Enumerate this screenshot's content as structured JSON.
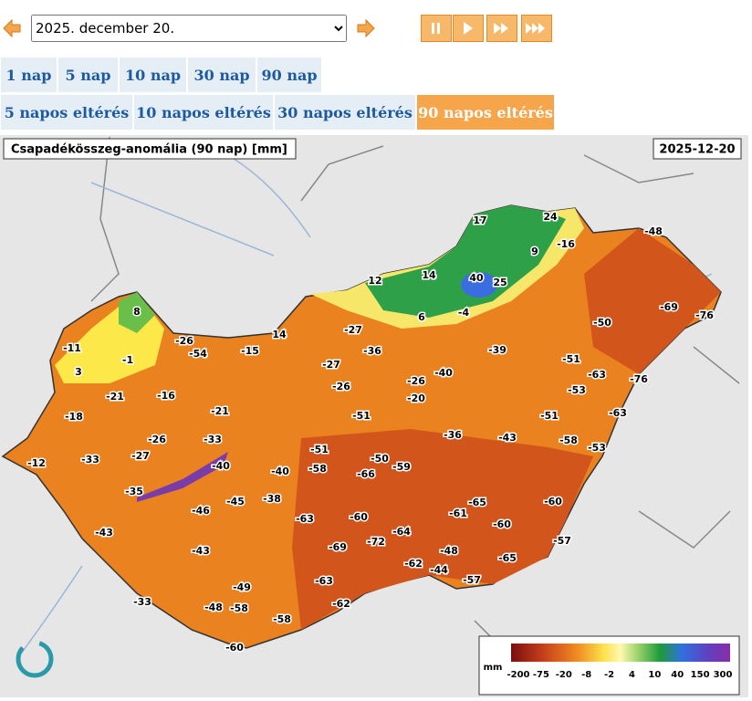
{
  "controls": {
    "date_select": "2025. december 20."
  },
  "tabs": {
    "row1": [
      {
        "label": "1 nap",
        "active": false
      },
      {
        "label": "5 nap",
        "active": false
      },
      {
        "label": "10 nap",
        "active": false
      },
      {
        "label": "30 nap",
        "active": false
      },
      {
        "label": "90 nap",
        "active": false
      }
    ],
    "row2": [
      {
        "label": "5 napos eltérés",
        "active": false
      },
      {
        "label": "10 napos eltérés",
        "active": false
      },
      {
        "label": "30 napos eltérés",
        "active": false
      },
      {
        "label": "90 napos eltérés",
        "active": true
      }
    ]
  },
  "map": {
    "title": "Csapadékösszeg-anomália (90 nap) [mm]",
    "date": "2025-12-20",
    "labels": [
      17,
      24,
      -48,
      -16,
      9,
      12,
      14,
      40,
      25,
      -69,
      -76,
      6,
      -4,
      8,
      -50,
      -27,
      14,
      -26,
      -11,
      -36,
      -15,
      -54,
      -39,
      -1,
      -51,
      -27,
      3,
      -40,
      -63,
      -76,
      -26,
      -26,
      -53,
      -21,
      -16,
      -20,
      -21,
      -63,
      -18,
      -51,
      -51,
      -26,
      -33,
      -36,
      -43,
      -58,
      -53,
      -12,
      -33,
      -27,
      -51,
      -50,
      -58,
      -40,
      -59,
      -66,
      -40,
      -35,
      -38,
      -45,
      -46,
      -65,
      -61,
      -60,
      -63,
      -60,
      -60,
      -43,
      -64,
      -69,
      -72,
      -43,
      -57,
      -48,
      -62,
      -65,
      -44,
      -57,
      -63,
      -49,
      -58,
      -48,
      -33,
      -62,
      -58,
      -60
    ],
    "legend": {
      "unit": "mm",
      "ticks": [
        -200,
        -75,
        -20,
        -8,
        -2,
        4,
        10,
        40,
        150,
        300
      ]
    }
  }
}
